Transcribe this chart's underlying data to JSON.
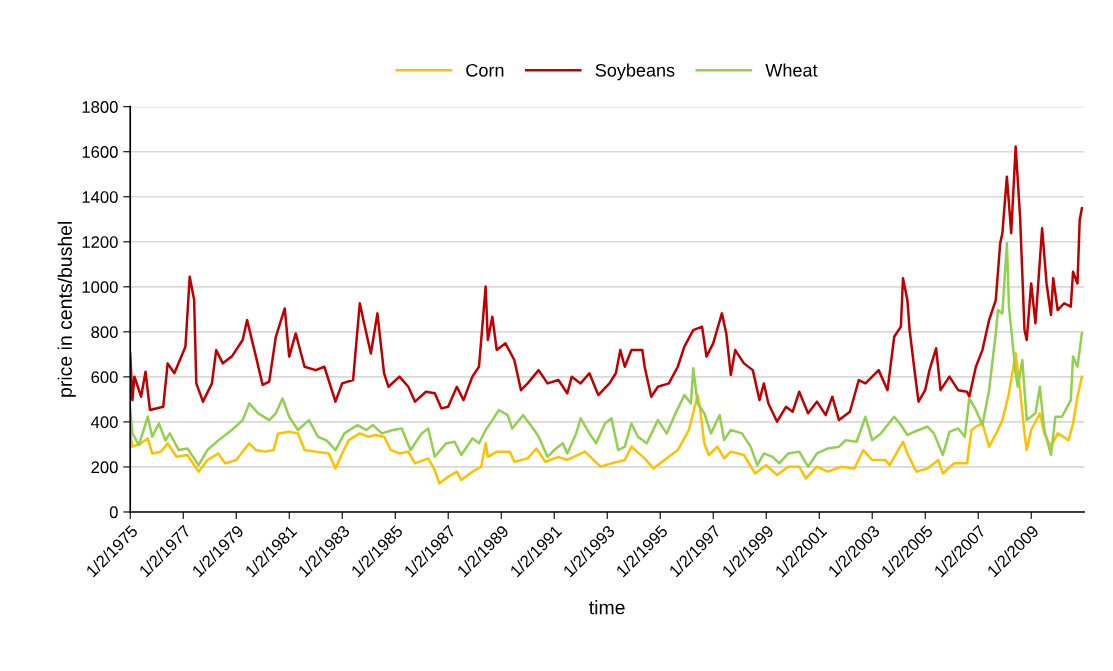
{
  "chart_data": {
    "type": "line",
    "xlabel": "time",
    "ylabel": "price in cents/bushel",
    "xlim": [
      "1975-01-02",
      "2010-12-31"
    ],
    "ylim": [
      0,
      1800
    ],
    "xticks": [
      {
        "value": "1975-01-02",
        "label": "1/2/1975"
      },
      {
        "value": "1977-01-02",
        "label": "1/2/1977"
      },
      {
        "value": "1979-01-02",
        "label": "1/2/1979"
      },
      {
        "value": "1981-01-02",
        "label": "1/2/1981"
      },
      {
        "value": "1983-01-02",
        "label": "1/2/1983"
      },
      {
        "value": "1985-01-02",
        "label": "1/2/1985"
      },
      {
        "value": "1987-01-02",
        "label": "1/2/1987"
      },
      {
        "value": "1989-01-02",
        "label": "1/2/1989"
      },
      {
        "value": "1991-01-02",
        "label": "1/2/1991"
      },
      {
        "value": "1993-01-02",
        "label": "1/2/1993"
      },
      {
        "value": "1995-01-02",
        "label": "1/2/1995"
      },
      {
        "value": "1997-01-02",
        "label": "1/2/1997"
      },
      {
        "value": "1999-01-02",
        "label": "1/2/1999"
      },
      {
        "value": "2001-01-02",
        "label": "1/2/2001"
      },
      {
        "value": "2003-01-02",
        "label": "1/2/2003"
      },
      {
        "value": "2005-01-02",
        "label": "1/2/2005"
      },
      {
        "value": "2007-01-02",
        "label": "1/2/2007"
      },
      {
        "value": "2009-01-02",
        "label": "1/2/2009"
      }
    ],
    "yticks": [
      0,
      200,
      400,
      600,
      800,
      1000,
      1200,
      1400,
      1600,
      1800
    ],
    "grid": "y",
    "legend": "top",
    "marker": "none",
    "line_style": "solid",
    "series": [
      {
        "name": "Corn",
        "color": "#ffc000",
        "x": [
          "1975-01-02",
          "1975-02",
          "1975-06",
          "1975-09",
          "1975-11",
          "1976-03",
          "1976-06",
          "1976-10",
          "1977-03",
          "1977-08",
          "1977-12",
          "1978-05",
          "1978-08",
          "1979-01",
          "1979-07",
          "1979-10",
          "1980-02",
          "1980-06",
          "1980-08",
          "1981-01",
          "1981-05",
          "1981-08",
          "1982-01",
          "1982-07",
          "1982-10",
          "1983-01",
          "1983-04",
          "1983-09",
          "1984-01",
          "1984-04",
          "1984-08",
          "1984-11",
          "1985-03",
          "1985-07",
          "1985-10",
          "1986-04",
          "1986-07",
          "1986-09",
          "1987-01",
          "1987-05",
          "1987-07",
          "1987-12",
          "1988-04",
          "1988-06",
          "1988-07",
          "1988-11",
          "1989-05",
          "1989-07",
          "1990-01",
          "1990-05",
          "1990-09",
          "1991-03",
          "1991-07",
          "1992-03",
          "1992-10",
          "1993-03",
          "1993-09",
          "1993-12",
          "1994-06",
          "1994-10",
          "1995-03",
          "1995-09",
          "1996-02",
          "1996-06",
          "1996-07",
          "1996-09",
          "1996-11",
          "1997-03",
          "1997-06",
          "1997-09",
          "1998-03",
          "1998-08",
          "1999-01",
          "1999-06",
          "1999-11",
          "2000-04",
          "2000-07",
          "2000-12",
          "2001-05",
          "2001-11",
          "2002-05",
          "2002-09",
          "2003-01",
          "2003-07",
          "2003-09",
          "2004-03",
          "2004-05",
          "2004-09",
          "2005-02",
          "2005-07",
          "2005-09",
          "2006-02",
          "2006-08",
          "2006-10",
          "2006-12",
          "2007-03",
          "2007-06",
          "2007-10",
          "2007-12",
          "2008-03",
          "2008-06",
          "2008-08",
          "2008-10",
          "2008-11",
          "2009-01",
          "2009-05",
          "2009-07",
          "2009-10",
          "2010-01",
          "2010-06",
          "2010-08",
          "2010-10",
          "2010-12"
        ],
        "values": [
          349,
          290,
          305,
          327,
          260,
          268,
          305,
          245,
          253,
          179,
          231,
          260,
          216,
          231,
          305,
          275,
          268,
          275,
          349,
          356,
          349,
          275,
          268,
          260,
          193,
          260,
          319,
          349,
          334,
          342,
          334,
          275,
          260,
          268,
          216,
          238,
          186,
          127,
          156,
          179,
          142,
          179,
          201,
          305,
          245,
          268,
          268,
          223,
          238,
          282,
          223,
          245,
          231,
          268,
          201,
          216,
          231,
          290,
          238,
          193,
          231,
          275,
          364,
          519,
          467,
          305,
          253,
          290,
          238,
          268,
          253,
          171,
          208,
          164,
          201,
          201,
          149,
          201,
          179,
          201,
          193,
          275,
          231,
          231,
          208,
          312,
          260,
          179,
          193,
          231,
          171,
          216,
          216,
          364,
          379,
          393,
          290,
          364,
          408,
          527,
          705,
          541,
          349,
          275,
          364,
          438,
          349,
          290,
          349,
          319,
          393,
          512,
          601
        ]
      },
      {
        "name": "Soybeans",
        "color": "#c00000",
        "x": [
          "1975-01-02",
          "1975-02",
          "1975-03",
          "1975-06",
          "1975-08",
          "1975-10",
          "1976-04",
          "1976-06",
          "1976-09",
          "1977-02",
          "1977-04",
          "1977-06",
          "1977-07",
          "1977-10",
          "1978-02",
          "1978-04",
          "1978-07",
          "1978-11",
          "1979-04",
          "1979-06",
          "1979-10",
          "1980-01",
          "1980-04",
          "1980-07",
          "1980-11",
          "1981-01",
          "1981-04",
          "1981-08",
          "1982-01",
          "1982-05",
          "1982-10",
          "1983-01",
          "1983-06",
          "1983-09",
          "1983-12",
          "1984-02",
          "1984-05",
          "1984-08",
          "1984-10",
          "1985-03",
          "1985-07",
          "1985-10",
          "1986-03",
          "1986-07",
          "1986-10",
          "1987-01",
          "1987-05",
          "1987-08",
          "1987-12",
          "1988-03",
          "1988-06",
          "1988-07",
          "1988-09",
          "1988-11",
          "1989-03",
          "1989-07",
          "1989-10",
          "1990-01",
          "1990-06",
          "1990-10",
          "1991-03",
          "1991-07",
          "1991-09",
          "1992-01",
          "1992-05",
          "1992-09",
          "1993-02",
          "1993-05",
          "1993-07",
          "1993-09",
          "1993-12",
          "1994-05",
          "1994-06",
          "1994-09",
          "1994-12",
          "1995-05",
          "1995-09",
          "1995-12",
          "1996-04",
          "1996-08",
          "1996-10",
          "1997-01",
          "1997-05",
          "1997-07",
          "1997-09",
          "1997-11",
          "1998-03",
          "1998-07",
          "1998-10",
          "1998-12",
          "1999-02",
          "1999-06",
          "1999-10",
          "2000-01",
          "2000-04",
          "2000-08",
          "2000-12",
          "2001-04",
          "2001-07",
          "2001-10",
          "2002-03",
          "2002-07",
          "2002-10",
          "2003-04",
          "2003-08",
          "2003-11",
          "2004-02",
          "2004-03",
          "2004-05",
          "2004-06",
          "2004-08",
          "2004-10",
          "2005-01",
          "2005-03",
          "2005-06",
          "2005-08",
          "2005-12",
          "2006-04",
          "2006-08",
          "2006-09",
          "2006-12",
          "2007-03",
          "2007-06",
          "2007-09",
          "2007-11",
          "2007-12",
          "2008-02",
          "2008-04",
          "2008-06",
          "2008-08",
          "2008-10",
          "2008-11",
          "2009-01",
          "2009-03",
          "2009-06",
          "2009-08",
          "2009-10",
          "2009-11",
          "2010-01",
          "2010-04",
          "2010-07",
          "2010-08",
          "2010-10",
          "2010-11",
          "2010-12"
        ],
        "values": [
          704,
          497,
          601,
          512,
          623,
          453,
          467,
          660,
          616,
          734,
          1045,
          941,
          571,
          490,
          571,
          719,
          660,
          690,
          764,
          852,
          690,
          564,
          579,
          778,
          904,
          690,
          793,
          645,
          630,
          645,
          490,
          571,
          586,
          927,
          793,
          704,
          882,
          616,
          556,
          601,
          556,
          490,
          534,
          527,
          460,
          467,
          556,
          497,
          601,
          645,
          1001,
          764,
          867,
          719,
          749,
          675,
          541,
          571,
          630,
          571,
          586,
          527,
          601,
          571,
          616,
          519,
          571,
          616,
          719,
          645,
          719,
          719,
          645,
          512,
          556,
          571,
          645,
          734,
          808,
          823,
          690,
          749,
          882,
          793,
          608,
          719,
          660,
          630,
          497,
          571,
          482,
          401,
          467,
          445,
          534,
          438,
          490,
          430,
          512,
          408,
          445,
          586,
          571,
          630,
          541,
          778,
          823,
          1038,
          941,
          808,
          645,
          490,
          541,
          630,
          727,
          541,
          601,
          541,
          534,
          512,
          645,
          719,
          852,
          941,
          1193,
          1238,
          1489,
          1238,
          1623,
          1312,
          808,
          764,
          1015,
          838,
          1260,
          1015,
          875,
          1038,
          897,
          927,
          912,
          1067,
          1015,
          1297,
          1349
        ]
      },
      {
        "name": "Wheat",
        "color": "#92d050",
        "x": [
          "1975-01-02",
          "1975-02",
          "1975-05",
          "1975-09",
          "1975-11",
          "1976-02",
          "1976-05",
          "1976-07",
          "1976-11",
          "1977-03",
          "1977-08",
          "1977-12",
          "1978-05",
          "1978-11",
          "1979-04",
          "1979-07",
          "1979-11",
          "1980-04",
          "1980-07",
          "1980-10",
          "1981-01",
          "1981-05",
          "1981-10",
          "1982-02",
          "1982-06",
          "1982-10",
          "1983-02",
          "1983-08",
          "1983-12",
          "1984-03",
          "1984-07",
          "1984-12",
          "1985-04",
          "1985-08",
          "1986-01",
          "1986-04",
          "1986-07",
          "1986-12",
          "1987-04",
          "1987-07",
          "1987-12",
          "1988-03",
          "1988-06",
          "1988-09",
          "1988-12",
          "1989-04",
          "1989-06",
          "1989-11",
          "1990-04",
          "1990-06",
          "1990-10",
          "1991-01",
          "1991-05",
          "1991-07",
          "1991-11",
          "1992-01",
          "1992-05",
          "1992-08",
          "1992-12",
          "1993-03",
          "1993-06",
          "1993-09",
          "1993-12",
          "1994-03",
          "1994-07",
          "1994-12",
          "1995-04",
          "1995-08",
          "1995-12",
          "1996-03",
          "1996-04",
          "1996-06",
          "1996-09",
          "1996-12",
          "1997-04",
          "1997-06",
          "1997-09",
          "1998-02",
          "1998-06",
          "1998-09",
          "1998-12",
          "1999-04",
          "1999-07",
          "1999-11",
          "2000-04",
          "2000-08",
          "2000-12",
          "2001-05",
          "2001-10",
          "2002-01",
          "2002-06",
          "2002-10",
          "2003-01",
          "2003-05",
          "2003-11",
          "2004-02",
          "2004-05",
          "2004-10",
          "2005-02",
          "2005-05",
          "2005-09",
          "2005-12",
          "2006-04",
          "2006-07",
          "2006-09",
          "2006-12",
          "2007-03",
          "2007-06",
          "2007-09",
          "2007-10",
          "2007-12",
          "2008-02",
          "2008-03",
          "2008-06",
          "2008-07",
          "2008-09",
          "2008-11",
          "2009-03",
          "2009-05",
          "2009-07",
          "2009-10",
          "2009-12",
          "2010-03",
          "2010-07",
          "2010-08",
          "2010-10",
          "2010-12"
        ],
        "values": [
          453,
          349,
          297,
          423,
          334,
          393,
          318,
          349,
          275,
          282,
          208,
          275,
          318,
          364,
          408,
          482,
          438,
          408,
          438,
          504,
          423,
          364,
          408,
          334,
          318,
          275,
          349,
          386,
          364,
          386,
          349,
          364,
          371,
          275,
          349,
          371,
          245,
          304,
          312,
          253,
          327,
          305,
          364,
          408,
          453,
          430,
          371,
          430,
          364,
          334,
          245,
          275,
          305,
          260,
          349,
          416,
          349,
          305,
          393,
          416,
          275,
          290,
          393,
          334,
          305,
          408,
          349,
          438,
          519,
          482,
          638,
          482,
          438,
          349,
          430,
          319,
          364,
          349,
          290,
          208,
          260,
          245,
          216,
          260,
          268,
          201,
          260,
          282,
          290,
          319,
          312,
          423,
          319,
          349,
          423,
          386,
          342,
          364,
          379,
          349,
          253,
          356,
          371,
          334,
          504,
          453,
          386,
          541,
          793,
          897,
          882,
          1193,
          912,
          616,
          556,
          675,
          408,
          438,
          556,
          364,
          253,
          423,
          423,
          497,
          690,
          645,
          793
        ]
      }
    ]
  }
}
